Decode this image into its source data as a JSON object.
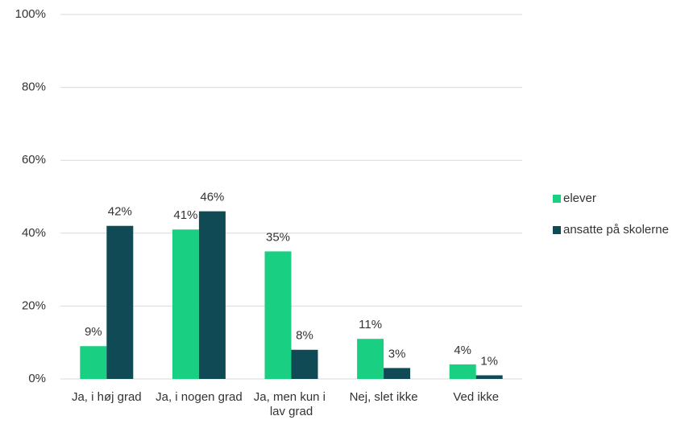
{
  "chart_data": {
    "type": "bar",
    "categories": [
      "Ja, i høj grad",
      "Ja, i nogen grad",
      "Ja, men kun i lav grad",
      "Nej, slet ikke",
      "Ved ikke"
    ],
    "series": [
      {
        "name": "elever",
        "color": "#19cf82",
        "values": [
          9,
          41,
          35,
          11,
          4
        ],
        "value_labels": [
          "9%",
          "41%",
          "35%",
          "11%",
          "4%"
        ]
      },
      {
        "name": "ansatte på skolerne",
        "color": "#104a55",
        "values": [
          42,
          46,
          8,
          3,
          1
        ],
        "value_labels": [
          "42%",
          "46%",
          "8%",
          "3%",
          "1%"
        ]
      }
    ],
    "ylim": [
      0,
      100
    ],
    "yticks": [
      {
        "value": 0,
        "label": "0%"
      },
      {
        "value": 20,
        "label": "20%"
      },
      {
        "value": 40,
        "label": "40%"
      },
      {
        "value": 60,
        "label": "60%"
      },
      {
        "value": 80,
        "label": "80%"
      },
      {
        "value": 100,
        "label": "100%"
      }
    ],
    "grid": true,
    "legend": "right"
  }
}
